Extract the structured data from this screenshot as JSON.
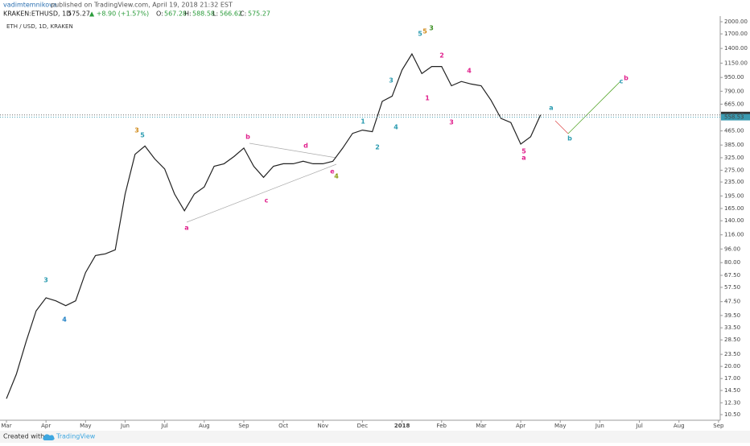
{
  "header": {
    "author": "vadimtemnikova",
    "published": "published on TradingView.com, April 19, 2018 21:32 EST",
    "symbol": "KRAKEN:ETHUSD, 1D",
    "price": "575.27",
    "change": "▲ +8.90 (+1.57%)",
    "open_label": "O:",
    "open": "567.28",
    "high_label": "H:",
    "high": "588.58",
    "low_label": "L:",
    "low": "566.62",
    "close_label": "C:",
    "close": "575.27"
  },
  "footer": {
    "created": "Created with",
    "brand": "TradingView"
  },
  "chart_data": {
    "type": "line",
    "title": "ETH / USD, 1D, KRAKEN",
    "log_scale": true,
    "color": "#222222",
    "categories": [
      "Mar",
      null,
      null,
      null,
      "Apr",
      null,
      null,
      null,
      "May",
      null,
      null,
      null,
      "Jun",
      null,
      null,
      null,
      "Jul",
      null,
      null,
      null,
      "Aug",
      null,
      null,
      null,
      "Sep",
      null,
      null,
      null,
      "Oct",
      null,
      null,
      null,
      "Nov",
      null,
      null,
      null,
      "Dec",
      null,
      null,
      null,
      "2018",
      null,
      null,
      null,
      "Feb",
      null,
      null,
      null,
      "Mar",
      null,
      null,
      null,
      "Apr",
      null,
      null,
      null,
      "May",
      null,
      null,
      null,
      "Jun",
      null,
      null,
      null,
      "Jul",
      null,
      null,
      null,
      "Aug",
      null,
      null,
      null,
      "Sep"
    ],
    "values": [
      13,
      18,
      28,
      42,
      50,
      48,
      45,
      48,
      70,
      88,
      90,
      95,
      200,
      340,
      380,
      320,
      280,
      200,
      160,
      200,
      220,
      290,
      300,
      330,
      370,
      290,
      250,
      290,
      300,
      300,
      310,
      300,
      300,
      310,
      370,
      450,
      470,
      460,
      690,
      740,
      1050,
      1300,
      1000,
      1100,
      1100,
      850,
      900,
      870,
      850,
      700,
      550,
      520,
      390,
      430,
      575.27,
      null,
      null,
      null,
      null,
      null,
      null,
      null,
      null,
      null,
      null,
      null,
      null,
      null,
      null,
      null,
      null,
      null,
      null
    ],
    "ylim": [
      9.74,
      2156
    ],
    "yticks": [
      {
        "value": 2000,
        "label": "2000.00"
      },
      {
        "value": 1700,
        "label": "1700.00"
      },
      {
        "value": 1400,
        "label": "1400.00"
      },
      {
        "value": 1150,
        "label": "1150.00"
      },
      {
        "value": 950,
        "label": "950.00"
      },
      {
        "value": 790,
        "label": "790.00"
      },
      {
        "value": 665,
        "label": "665.00"
      },
      {
        "value": 465,
        "label": "465.00"
      },
      {
        "value": 385,
        "label": "385.00"
      },
      {
        "value": 325,
        "label": "325.00"
      },
      {
        "value": 275,
        "label": "275.00"
      },
      {
        "value": 235,
        "label": "235.00"
      },
      {
        "value": 195,
        "label": "195.00"
      },
      {
        "value": 165,
        "label": "165.00"
      },
      {
        "value": 140,
        "label": "140.00"
      },
      {
        "value": 116,
        "label": "116.00"
      },
      {
        "value": 96,
        "label": "96.00"
      },
      {
        "value": 80,
        "label": "80.00"
      },
      {
        "value": 67.5,
        "label": "67.50"
      },
      {
        "value": 57.5,
        "label": "57.50"
      },
      {
        "value": 47.5,
        "label": "47.50"
      },
      {
        "value": 39.5,
        "label": "39.50"
      },
      {
        "value": 33.5,
        "label": "33.50"
      },
      {
        "value": 28.5,
        "label": "28.50"
      },
      {
        "value": 23.5,
        "label": "23.50"
      },
      {
        "value": 20,
        "label": "20.00"
      },
      {
        "value": 17,
        "label": "17.00"
      },
      {
        "value": 14.5,
        "label": "14.50"
      },
      {
        "value": 12.3,
        "label": "12.30"
      },
      {
        "value": 10.5,
        "label": "10.50"
      }
    ],
    "price_lines": [
      575.27,
      558.53
    ],
    "annotations": [
      {
        "text": "3",
        "color": "#2a9bb0"
      },
      {
        "text": "4",
        "color": "#1e7fc4"
      },
      {
        "text": "3",
        "color": "#d08a1a"
      },
      {
        "text": "5",
        "color": "#2a9bb0"
      },
      {
        "text": "a",
        "color": "#e0208c"
      },
      {
        "text": "b",
        "color": "#e0208c"
      },
      {
        "text": "c",
        "color": "#e0208c"
      },
      {
        "text": "d",
        "color": "#e0208c"
      },
      {
        "text": "e",
        "color": "#e0208c"
      },
      {
        "text": "4",
        "color": "#8a9a10"
      },
      {
        "text": "1",
        "color": "#2a9bb0"
      },
      {
        "text": "2",
        "color": "#2a9bb0"
      },
      {
        "text": "3",
        "color": "#2a9bb0"
      },
      {
        "text": "4",
        "color": "#2a9bb0"
      },
      {
        "text": "5",
        "color": "#2a9bb0"
      },
      {
        "text": "5",
        "color": "#d08a1a"
      },
      {
        "text": "3",
        "color": "#3b8e22"
      },
      {
        "text": "1",
        "color": "#e0208c"
      },
      {
        "text": "2",
        "color": "#e0208c"
      },
      {
        "text": "3",
        "color": "#e0208c"
      },
      {
        "text": "4",
        "color": "#e0208c"
      },
      {
        "text": "5",
        "color": "#e0208c"
      },
      {
        "text": "a",
        "color": "#e0208c"
      },
      {
        "text": "a",
        "color": "#2a9bb0"
      },
      {
        "text": "b",
        "color": "#2a9bb0"
      },
      {
        "text": "c",
        "color": "#2a9bb0"
      },
      {
        "text": "b",
        "color": "#e0208c"
      }
    ]
  }
}
